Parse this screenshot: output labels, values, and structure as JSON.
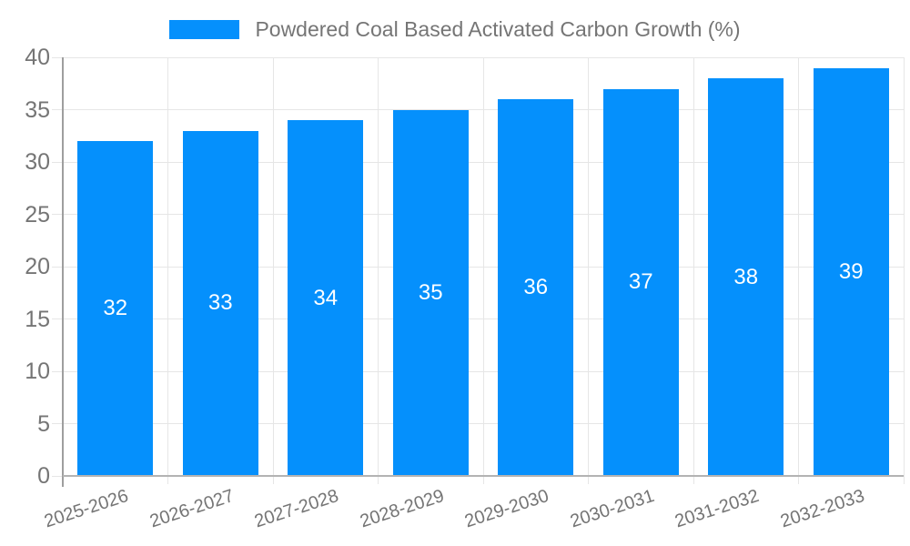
{
  "legend": {
    "label": "Powdered Coal Based Activated Carbon Growth (%)"
  },
  "chart_data": {
    "type": "bar",
    "title": "",
    "categories": [
      "2025-2026",
      "2026-2027",
      "2027-2028",
      "2028-2029",
      "2029-2030",
      "2030-2031",
      "2031-2032",
      "2032-2033"
    ],
    "series": [
      {
        "name": "Powdered Coal Based Activated Carbon Growth (%)",
        "values": [
          32,
          33,
          34,
          35,
          36,
          37,
          38,
          39
        ]
      }
    ],
    "value_labels": [
      "32",
      "33",
      "34",
      "35",
      "36",
      "37",
      "38",
      "39"
    ],
    "xlabel": "",
    "ylabel": "",
    "ylim": [
      0,
      40
    ],
    "yticks": [
      0,
      5,
      10,
      15,
      20,
      25,
      30,
      35,
      40
    ],
    "grid": true,
    "legend_position": "top",
    "value_label_position": "inside-center"
  },
  "colors": {
    "bar": "#0590fc",
    "gridline": "#e6e6e6",
    "y_axis_line": "#9e9e9e",
    "x_axis_line": "#b3b3b3",
    "tick_text": "#757575",
    "legend_text": "#757575",
    "value_text": "#ffffff",
    "background": "#ffffff"
  }
}
